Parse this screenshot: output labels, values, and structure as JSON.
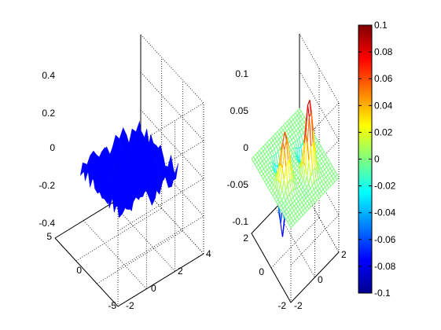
{
  "colors": {
    "background": "#ffffff",
    "left_surface": "#0000ff",
    "axis": "#000000"
  },
  "chart_data": [
    {
      "type": "surface",
      "view": "3d",
      "color": "#0000ff",
      "x_ticks": [
        "-5",
        "0",
        "5"
      ],
      "y_ticks": [
        "-2",
        "0",
        "2",
        "4"
      ],
      "z_ticks": [
        "-0.4",
        "-0.2",
        "0",
        "0.2",
        "0.4"
      ],
      "xlim": [
        -5,
        5
      ],
      "ylim": [
        -2,
        4
      ],
      "zlim": [
        -0.4,
        0.4
      ],
      "grid": true,
      "title": "",
      "xlabel": "",
      "ylabel": "",
      "zlabel": ""
    },
    {
      "type": "mesh",
      "view": "3d",
      "colormap": "jet",
      "x_ticks": [
        "-2",
        "0",
        "2"
      ],
      "y_ticks": [
        "-2",
        "0",
        "2"
      ],
      "z_ticks": [
        "-0.1",
        "-0.05",
        "0",
        "0.05",
        "0.1"
      ],
      "xlim": [
        -2,
        2
      ],
      "ylim": [
        -2,
        2
      ],
      "zlim": [
        -0.1,
        0.1
      ],
      "grid": true,
      "title": "",
      "xlabel": "",
      "ylabel": "",
      "zlabel": ""
    }
  ],
  "colorbar": {
    "colormap": "jet",
    "range": [
      -0.1,
      0.1
    ],
    "ticks": [
      "0.1",
      "0.08",
      "0.06",
      "0.04",
      "0.02",
      "0",
      "-0.02",
      "-0.04",
      "-0.06",
      "-0.08",
      "-0.1"
    ]
  }
}
